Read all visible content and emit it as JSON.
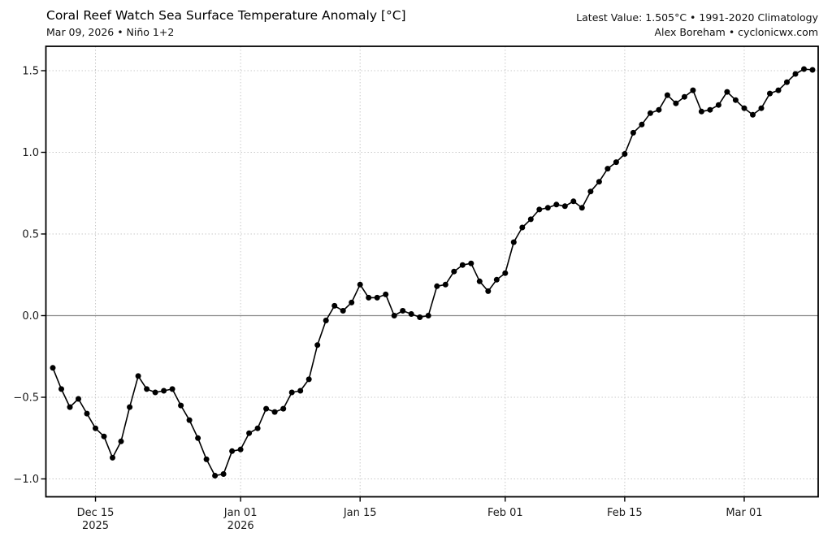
{
  "header": {
    "title": "Coral Reef Watch Sea Surface Temperature Anomaly [°C]",
    "subtitle": "Mar 09, 2026 • Niño 1+2",
    "latest_value_line": "Latest Value: 1.505°C • 1991-2020 Climatology",
    "credit_line": "Alex Boreham • cyclonicwx.com"
  },
  "colors": {
    "series": "#000000",
    "grid": "#c9c9c9",
    "zero_line": "#8c8c8c",
    "axis_border": "#000000",
    "tick_label": "#1a1a1a",
    "background": "#ffffff"
  },
  "chart_data": {
    "type": "line",
    "title": "Coral Reef Watch Sea Surface Temperature Anomaly [°C]",
    "subtitle": "Mar 09, 2026 • Niño 1+2",
    "series_name": "SST anomaly Niño 1+2 (°C, vs 1991-2020 climatology)",
    "latest_value": 1.505,
    "xlabel": "",
    "ylabel": "",
    "ylim": [
      -1.11,
      1.65
    ],
    "grid": true,
    "legend": false,
    "marker": "circle",
    "dates": [
      "2025-12-10",
      "2025-12-11",
      "2025-12-12",
      "2025-12-13",
      "2025-12-14",
      "2025-12-15",
      "2025-12-16",
      "2025-12-17",
      "2025-12-18",
      "2025-12-19",
      "2025-12-20",
      "2025-12-21",
      "2025-12-22",
      "2025-12-23",
      "2025-12-24",
      "2025-12-25",
      "2025-12-26",
      "2025-12-27",
      "2025-12-28",
      "2025-12-29",
      "2025-12-30",
      "2025-12-31",
      "2026-01-01",
      "2026-01-02",
      "2026-01-03",
      "2026-01-04",
      "2026-01-05",
      "2026-01-06",
      "2026-01-07",
      "2026-01-08",
      "2026-01-09",
      "2026-01-10",
      "2026-01-11",
      "2026-01-12",
      "2026-01-13",
      "2026-01-14",
      "2026-01-15",
      "2026-01-16",
      "2026-01-17",
      "2026-01-18",
      "2026-01-19",
      "2026-01-20",
      "2026-01-21",
      "2026-01-22",
      "2026-01-23",
      "2026-01-24",
      "2026-01-25",
      "2026-01-26",
      "2026-01-27",
      "2026-01-28",
      "2026-01-29",
      "2026-01-30",
      "2026-01-31",
      "2026-02-01",
      "2026-02-02",
      "2026-02-03",
      "2026-02-04",
      "2026-02-05",
      "2026-02-06",
      "2026-02-07",
      "2026-02-08",
      "2026-02-09",
      "2026-02-10",
      "2026-02-11",
      "2026-02-12",
      "2026-02-13",
      "2026-02-14",
      "2026-02-15",
      "2026-02-16",
      "2026-02-17",
      "2026-02-18",
      "2026-02-19",
      "2026-02-20",
      "2026-02-21",
      "2026-02-22",
      "2026-02-23",
      "2026-02-24",
      "2026-02-25",
      "2026-02-26",
      "2026-02-27",
      "2026-02-28",
      "2026-03-01",
      "2026-03-02",
      "2026-03-03",
      "2026-03-04",
      "2026-03-05",
      "2026-03-06",
      "2026-03-07",
      "2026-03-08",
      "2026-03-09"
    ],
    "values": [
      -0.32,
      -0.45,
      -0.56,
      -0.51,
      -0.6,
      -0.69,
      -0.74,
      -0.87,
      -0.77,
      -0.56,
      -0.37,
      -0.45,
      -0.47,
      -0.46,
      -0.45,
      -0.55,
      -0.64,
      -0.75,
      -0.88,
      -0.98,
      -0.97,
      -0.83,
      -0.82,
      -0.72,
      -0.69,
      -0.57,
      -0.59,
      -0.57,
      -0.47,
      -0.46,
      -0.39,
      -0.18,
      -0.03,
      0.06,
      0.03,
      0.08,
      0.19,
      0.11,
      0.11,
      0.13,
      0.0,
      0.03,
      0.01,
      -0.01,
      0.0,
      0.18,
      0.19,
      0.27,
      0.31,
      0.32,
      0.21,
      0.15,
      0.22,
      0.26,
      0.45,
      0.54,
      0.59,
      0.65,
      0.66,
      0.68,
      0.67,
      0.7,
      0.66,
      0.76,
      0.82,
      0.9,
      0.94,
      0.99,
      1.12,
      1.17,
      1.24,
      1.26,
      1.35,
      1.3,
      1.34,
      1.38,
      1.25,
      1.26,
      1.29,
      1.37,
      1.32,
      1.27,
      1.23,
      1.27,
      1.36,
      1.38,
      1.43,
      1.48,
      1.51,
      1.505
    ],
    "x_ticks": [
      {
        "date": "2025-12-15",
        "label": "Dec 15",
        "sublabel": "2025"
      },
      {
        "date": "2026-01-01",
        "label": "Jan 01",
        "sublabel": "2026"
      },
      {
        "date": "2026-01-15",
        "label": "Jan 15",
        "sublabel": ""
      },
      {
        "date": "2026-02-01",
        "label": "Feb 01",
        "sublabel": ""
      },
      {
        "date": "2026-02-15",
        "label": "Feb 15",
        "sublabel": ""
      },
      {
        "date": "2026-03-01",
        "label": "Mar 01",
        "sublabel": ""
      }
    ],
    "y_ticks": [
      {
        "value": -1.0,
        "label": "−1.0"
      },
      {
        "value": -0.5,
        "label": "−0.5"
      },
      {
        "value": 0.0,
        "label": "0.0"
      },
      {
        "value": 0.5,
        "label": "0.5"
      },
      {
        "value": 1.0,
        "label": "1.0"
      },
      {
        "value": 1.5,
        "label": "1.5"
      }
    ]
  }
}
